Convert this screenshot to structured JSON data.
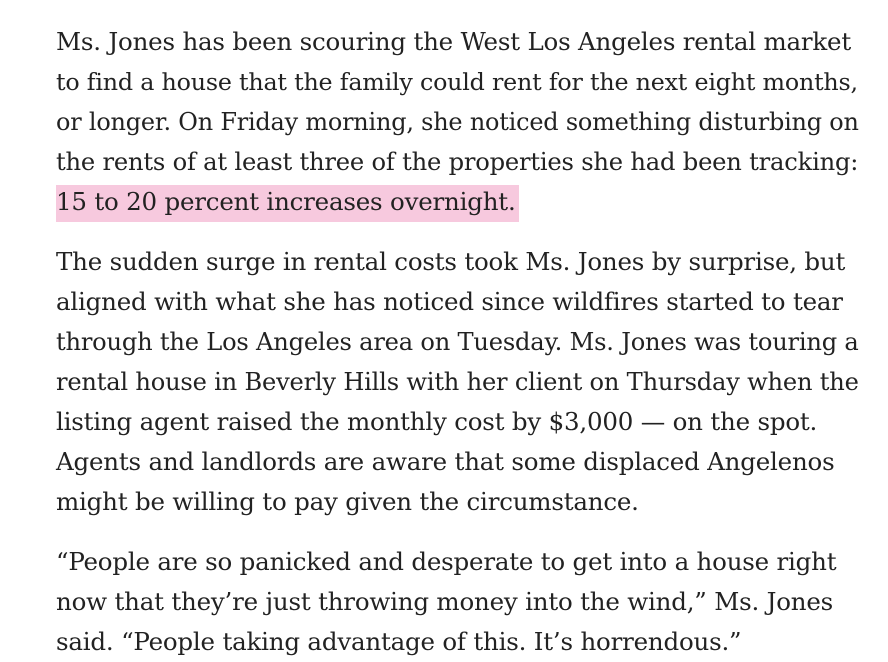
{
  "article": {
    "paragraphs": [
      {
        "lines": [
          "Ms. Jones has been scouring the West Los Angeles rental market",
          "to find a house that the family could rent for the next eight months,",
          "or longer. On Friday morning, she noticed something disturbing on",
          "the rents of at least three of the properties she had been tracking:"
        ],
        "highlight": "15 to 20 percent increases overnight."
      },
      {
        "lines": [
          "The sudden surge in rental costs took Ms. Jones by surprise, but",
          "aligned with what she has noticed since wildfires started to tear",
          "through the Los Angeles area on Tuesday. Ms. Jones was touring a",
          "rental house in Beverly Hills with her client on Thursday when the",
          "listing agent raised the monthly cost by $3,000 — on the spot.",
          "Agents and landlords are aware that some displaced Angelenos",
          "might be willing to pay given the circumstance."
        ]
      },
      {
        "lines": [
          "“People are so panicked and desperate to get into a house right",
          "now that they’re just throwing money into the wind,” Ms. Jones",
          "said. “People taking advantage of this. It’s horrendous.”"
        ]
      }
    ],
    "highlight_color": "#f7c9de",
    "text_color": "#222222"
  }
}
